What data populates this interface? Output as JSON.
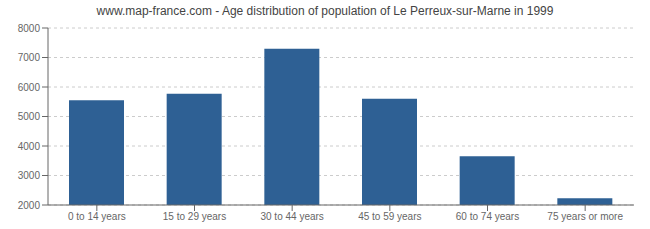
{
  "chart_data": {
    "type": "bar",
    "title": "www.map-france.com - Age distribution of population of Le Perreux-sur-Marne in 1999",
    "categories": [
      "0 to 14 years",
      "15 to 29 years",
      "30 to 44 years",
      "45 to 59 years",
      "60 to 74 years",
      "75 years or more"
    ],
    "values": [
      5550,
      5775,
      7300,
      5600,
      3650,
      2225
    ],
    "color": "#2e6094",
    "ylim": [
      2000,
      8000
    ],
    "yticks": [
      2000,
      3000,
      4000,
      5000,
      6000,
      7000,
      8000
    ],
    "grid": true
  }
}
